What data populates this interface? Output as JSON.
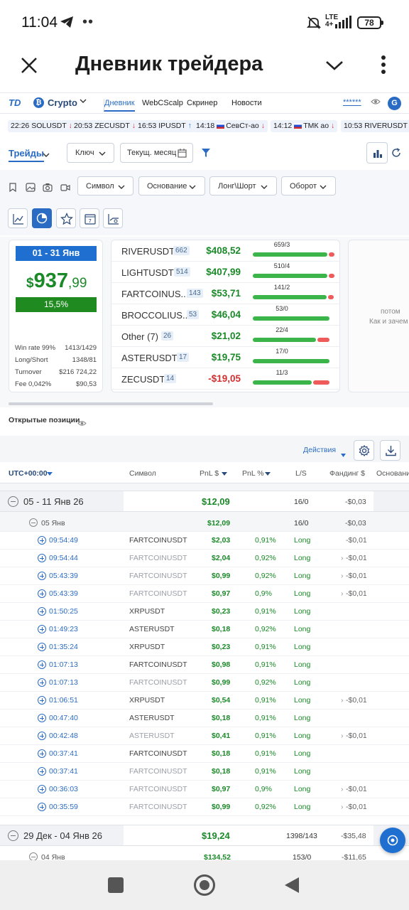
{
  "status": {
    "time": "11:04",
    "lte": "LTE",
    "lte_sub": "4+",
    "battery": "78"
  },
  "appbar": {
    "title": "Дневник трейдера"
  },
  "nav": {
    "logo": "TD",
    "market": "Crypto",
    "items": [
      "Дневник",
      "WebCScalp",
      "Скринер",
      "Новости"
    ],
    "masked": "******",
    "avatar": "G"
  },
  "ticker": [
    {
      "time": "22:26",
      "symbol": "SOLUSDT",
      "dir": "down"
    },
    {
      "time": "20:53",
      "symbol": "ZECUSDT",
      "dir": "down"
    },
    {
      "time": "16:53",
      "symbol": "IPUSDT",
      "dir": "up"
    },
    {
      "time": "14:18",
      "symbol": "СевСт-ао",
      "dir": "down"
    },
    {
      "time": "14:12",
      "symbol": "ТМК ао",
      "dir": "down"
    },
    {
      "time": "10:53",
      "symbol": "RIVERUSDT",
      "dir": "up"
    }
  ],
  "toolbar": {
    "tab": "Трейды",
    "key": "Ключ",
    "period": "Текущ. месяц"
  },
  "filters": [
    "Символ",
    "Основание",
    "Лонг\\Шорт",
    "Оборот"
  ],
  "summary": {
    "range": "01 - 31 Янв",
    "currency": "$",
    "pnl_int": "937",
    "pnl_dec": ",99",
    "pct": "15,5%",
    "stats": [
      {
        "label": "Win rate 99%",
        "value": "1413/1429"
      },
      {
        "label": "Long/Short",
        "value": "1348/81"
      },
      {
        "label": "Turnover",
        "value": "$216 724,22"
      },
      {
        "label": "Fee 0,042%",
        "value": "$90,53"
      }
    ]
  },
  "symbols": [
    {
      "name": "RIVERUSDT",
      "count": "662",
      "pnl": "$408,52",
      "wl": "659/3",
      "win": 0.995
    },
    {
      "name": "LIGHTUSDT",
      "count": "514",
      "pnl": "$407,99",
      "wl": "510/4",
      "win": 0.992
    },
    {
      "name": "FARTCOINUS...",
      "count": "143",
      "pnl": "$53,71",
      "wl": "141/2",
      "win": 0.986
    },
    {
      "name": "BROCCOLIUS...",
      "count": "53",
      "pnl": "$46,04",
      "wl": "53/0",
      "win": 1.0
    },
    {
      "name": "Other (7)",
      "count": "26",
      "pnl": "$21,02",
      "wl": "22/4",
      "win": 0.846
    },
    {
      "name": "ASTERUSDT",
      "count": "17",
      "pnl": "$19,75",
      "wl": "17/0",
      "win": 1.0
    },
    {
      "name": "ZECUSDT",
      "count": "14",
      "pnl": "-$19,05",
      "wl": "11/3",
      "win": 0.786
    }
  ],
  "side_card": {
    "line1": "потом",
    "line2": "Как и зачем"
  },
  "positions": {
    "title": "Открытые позиции",
    "actions": "Действия"
  },
  "table": {
    "headers": [
      "UTC+00:00",
      "Символ",
      "PnL $",
      "PnL %",
      "L/S",
      "Фандинг $",
      "Основани"
    ],
    "week1": {
      "label": "05 - 11 Янв 26",
      "pnl": "$12,09",
      "ls": "16/0",
      "funding": "-$0,03"
    },
    "day1": {
      "label": "05 Янв",
      "pnl": "$12,09",
      "ls": "16/0",
      "funding": "-$0,03"
    },
    "rows": [
      {
        "time": "09:54:49",
        "symbol": "FARTCOINUSDT",
        "pnl": "$2,03",
        "pct": "0,91%",
        "side": "Long",
        "funding": "-$0,01",
        "dim": false
      },
      {
        "time": "09:54:44",
        "symbol": "FARTCOINUSDT",
        "pnl": "$2,04",
        "pct": "0,92%",
        "side": "Long",
        "funding": "-$0,01",
        "dim": true
      },
      {
        "time": "05:43:39",
        "symbol": "FARTCOINUSDT",
        "pnl": "$0,99",
        "pct": "0,92%",
        "side": "Long",
        "funding": "-$0,01",
        "dim": true
      },
      {
        "time": "05:43:39",
        "symbol": "FARTCOINUSDT",
        "pnl": "$0,97",
        "pct": "0,9%",
        "side": "Long",
        "funding": "-$0,01",
        "dim": true
      },
      {
        "time": "01:50:25",
        "symbol": "XRPUSDT",
        "pnl": "$0,23",
        "pct": "0,91%",
        "side": "Long",
        "funding": "",
        "dim": false
      },
      {
        "time": "01:49:23",
        "symbol": "ASTERUSDT",
        "pnl": "$0,18",
        "pct": "0,92%",
        "side": "Long",
        "funding": "",
        "dim": false
      },
      {
        "time": "01:35:24",
        "symbol": "XRPUSDT",
        "pnl": "$0,23",
        "pct": "0,91%",
        "side": "Long",
        "funding": "",
        "dim": false
      },
      {
        "time": "01:07:13",
        "symbol": "FARTCOINUSDT",
        "pnl": "$0,98",
        "pct": "0,91%",
        "side": "Long",
        "funding": "",
        "dim": false
      },
      {
        "time": "01:07:13",
        "symbol": "FARTCOINUSDT",
        "pnl": "$0,99",
        "pct": "0,92%",
        "side": "Long",
        "funding": "",
        "dim": true
      },
      {
        "time": "01:06:51",
        "symbol": "XRPUSDT",
        "pnl": "$0,54",
        "pct": "0,91%",
        "side": "Long",
        "funding": "-$0,01",
        "dim": false
      },
      {
        "time": "00:47:40",
        "symbol": "ASTERUSDT",
        "pnl": "$0,18",
        "pct": "0,91%",
        "side": "Long",
        "funding": "",
        "dim": false
      },
      {
        "time": "00:42:48",
        "symbol": "ASTERUSDT",
        "pnl": "$0,41",
        "pct": "0,91%",
        "side": "Long",
        "funding": "-$0,01",
        "dim": true
      },
      {
        "time": "00:37:41",
        "symbol": "FARTCOINUSDT",
        "pnl": "$0,18",
        "pct": "0,91%",
        "side": "Long",
        "funding": "",
        "dim": false
      },
      {
        "time": "00:37:41",
        "symbol": "FARTCOINUSDT",
        "pnl": "$0,18",
        "pct": "0,91%",
        "side": "Long",
        "funding": "",
        "dim": true
      },
      {
        "time": "00:36:03",
        "symbol": "FARTCOINUSDT",
        "pnl": "$0,97",
        "pct": "0,9%",
        "side": "Long",
        "funding": "-$0,01",
        "dim": true
      },
      {
        "time": "00:35:59",
        "symbol": "FARTCOINUSDT",
        "pnl": "$0,99",
        "pct": "0,92%",
        "side": "Long",
        "funding": "-$0,01",
        "dim": true
      }
    ],
    "week2": {
      "label": "29 Дек - 04 Янв 26",
      "pnl": "$19,24",
      "ls": "1398/143",
      "funding": "-$35,48"
    },
    "day2": {
      "label": "04 Янв",
      "pnl": "$134,52",
      "ls": "153/0",
      "funding": "-$11,65"
    }
  },
  "colors": {
    "accent": "#2a6cc4",
    "profit": "#1a8a28",
    "loss": "#d32f2f",
    "win_bar": "#3bb54a",
    "loss_bar": "#ef5b5b"
  }
}
